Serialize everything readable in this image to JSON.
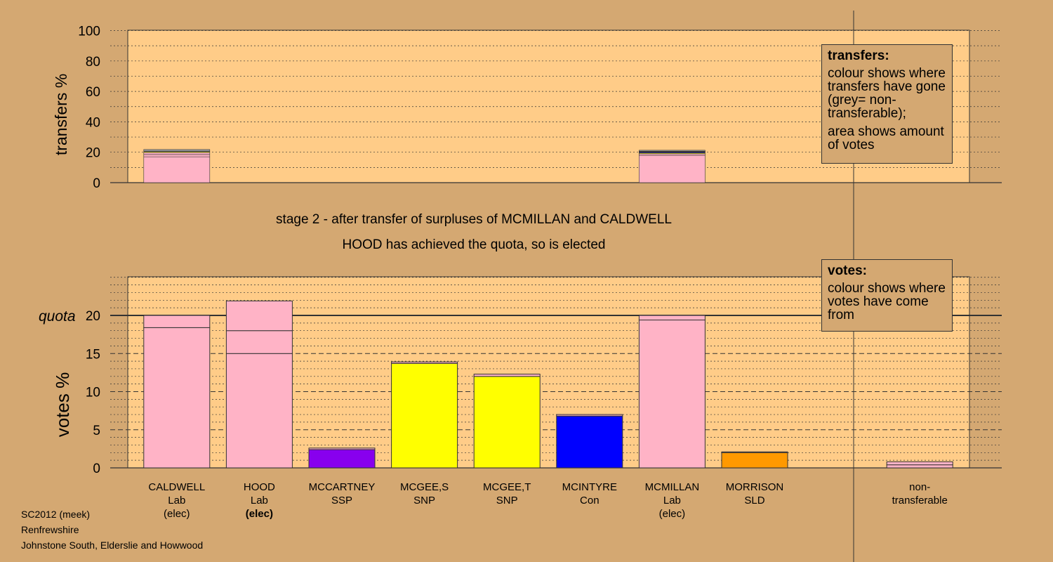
{
  "chart_data": [
    {
      "type": "bar",
      "name": "transfers",
      "ylabel": "transfers %",
      "ylim": [
        0,
        100
      ],
      "yticks": [
        0,
        20,
        40,
        60,
        80,
        100
      ],
      "bars": [
        {
          "candidate_index": 0,
          "segments": [
            {
              "value": 17.0,
              "color": "#ffb3c6"
            },
            {
              "value": 1.5,
              "color": "#ffb3c6"
            },
            {
              "value": 1.3,
              "color": "#ffb3c6"
            },
            {
              "value": 0.6,
              "color": "#ffff00"
            },
            {
              "value": 0.4,
              "color": "#0000ff"
            },
            {
              "value": 1.0,
              "color": "#aaaaaa"
            }
          ]
        },
        {
          "candidate_index": 6,
          "segments": [
            {
              "value": 18.0,
              "color": "#ffb3c6"
            },
            {
              "value": 1.0,
              "color": "#ffb3c6"
            },
            {
              "value": 0.6,
              "color": "#ffff00"
            },
            {
              "value": 0.5,
              "color": "#0000ff"
            },
            {
              "value": 0.3,
              "color": "#8800ee"
            },
            {
              "value": 0.3,
              "color": "#ff9900"
            },
            {
              "value": 0.6,
              "color": "#aaaaaa"
            }
          ]
        }
      ]
    },
    {
      "type": "bar",
      "name": "votes",
      "ylabel": "votes %",
      "ylim": [
        0,
        25
      ],
      "yticks": [
        0,
        5,
        10,
        15,
        20
      ],
      "quota": 20,
      "quota_label": "quota",
      "bars": [
        {
          "candidate_index": 0,
          "segments": [
            {
              "value": 18.4,
              "color": "#ffb3c6"
            },
            {
              "value": 1.6,
              "color": "#ffb3c6"
            }
          ]
        },
        {
          "candidate_index": 1,
          "segments": [
            {
              "value": 15.0,
              "color": "#ffb3c6"
            },
            {
              "value": 3.0,
              "color": "#ffb3c6"
            },
            {
              "value": 3.9,
              "color": "#ffb3c6"
            }
          ]
        },
        {
          "candidate_index": 2,
          "segments": [
            {
              "value": 2.4,
              "color": "#8800ee"
            },
            {
              "value": 0.2,
              "color": "#ffb3c6"
            }
          ]
        },
        {
          "candidate_index": 3,
          "segments": [
            {
              "value": 13.7,
              "color": "#ffff00"
            },
            {
              "value": 0.2,
              "color": "#ffb3c6"
            }
          ]
        },
        {
          "candidate_index": 4,
          "segments": [
            {
              "value": 12.0,
              "color": "#ffff00"
            },
            {
              "value": 0.3,
              "color": "#ffb3c6"
            }
          ]
        },
        {
          "candidate_index": 5,
          "segments": [
            {
              "value": 6.8,
              "color": "#0000ff"
            },
            {
              "value": 0.2,
              "color": "#ffb3c6"
            }
          ]
        },
        {
          "candidate_index": 6,
          "segments": [
            {
              "value": 19.4,
              "color": "#ffb3c6"
            },
            {
              "value": 0.6,
              "color": "#ffb3c6"
            }
          ]
        },
        {
          "candidate_index": 7,
          "segments": [
            {
              "value": 2.0,
              "color": "#ff9900"
            },
            {
              "value": 0.1,
              "color": "#ffb3c6"
            }
          ]
        },
        {
          "candidate_index": 9,
          "segments": [
            {
              "value": 0.4,
              "color": "#ffb3c6"
            },
            {
              "value": 0.4,
              "color": "#ffb3c6"
            }
          ]
        }
      ]
    }
  ],
  "candidates": [
    {
      "name": "CALDWELL",
      "party": "Lab",
      "status": "(elec)",
      "status_bold": false
    },
    {
      "name": "HOOD",
      "party": "Lab",
      "status": "(elec)",
      "status_bold": true
    },
    {
      "name": "MCCARTNEY",
      "party": "SSP",
      "status": "",
      "status_bold": false
    },
    {
      "name": "MCGEE,S",
      "party": "SNP",
      "status": "",
      "status_bold": false
    },
    {
      "name": "MCGEE,T",
      "party": "SNP",
      "status": "",
      "status_bold": false
    },
    {
      "name": "MCINTYRE",
      "party": "Con",
      "status": "",
      "status_bold": false
    },
    {
      "name": "MCMILLAN",
      "party": "Lab",
      "status": "(elec)",
      "status_bold": false
    },
    {
      "name": "MORRISON",
      "party": "SLD",
      "status": "",
      "status_bold": false
    },
    {
      "name": "",
      "party": "",
      "status": "",
      "status_bold": false
    },
    {
      "name": "non-",
      "party": "transferable",
      "status": "",
      "status_bold": false
    }
  ],
  "captions": {
    "stage": "stage 2 - after transfer of surpluses of MCMILLAN and CALDWELL",
    "result": "HOOD has achieved the quota, so is elected"
  },
  "legend_transfers": {
    "title": "transfers:",
    "line1": "colour shows where transfers have gone (grey= non-transferable);",
    "line2": "area shows amount of votes"
  },
  "legend_votes": {
    "title": "votes:",
    "line1": "colour shows where votes have come from"
  },
  "footer": {
    "election": "SC2012 (meek)",
    "council": "Renfrewshire",
    "ward": "Johnstone South, Elderslie and Howwood"
  },
  "colors": {
    "background": "#d4a872",
    "plot_background": "#ffcc88",
    "lab": "#ffb3c6",
    "snp": "#ffff00",
    "con": "#0000ff",
    "ssp": "#8800ee",
    "sld": "#ff9900",
    "non_transferable": "#aaaaaa"
  }
}
